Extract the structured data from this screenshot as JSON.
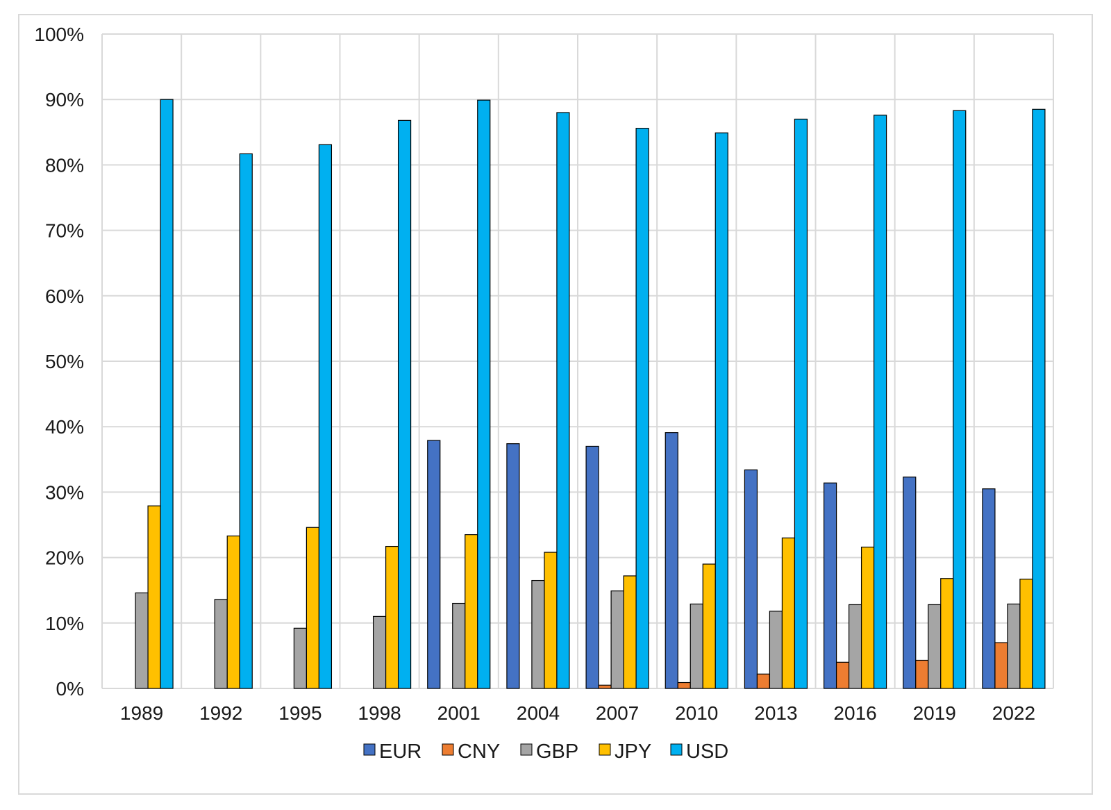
{
  "chart_data": {
    "type": "bar",
    "title": "",
    "xlabel": "",
    "ylabel": "",
    "categories": [
      "1989",
      "1992",
      "1995",
      "1998",
      "2001",
      "2004",
      "2007",
      "2010",
      "2013",
      "2016",
      "2019",
      "2022"
    ],
    "ylim": [
      0,
      100
    ],
    "y_ticks": [
      "0%",
      "10%",
      "20%",
      "30%",
      "40%",
      "50%",
      "60%",
      "70%",
      "80%",
      "90%",
      "100%"
    ],
    "grid": true,
    "legend_position": "bottom",
    "series": [
      {
        "name": "EUR",
        "color": "#4472c4",
        "values": [
          null,
          null,
          null,
          null,
          37.9,
          37.4,
          37.0,
          39.1,
          33.4,
          31.4,
          32.3,
          30.5
        ]
      },
      {
        "name": "CNY",
        "color": "#ed7d31",
        "values": [
          null,
          null,
          null,
          null,
          null,
          null,
          0.5,
          0.9,
          2.2,
          4.0,
          4.3,
          7.0
        ]
      },
      {
        "name": "GBP",
        "color": "#a5a5a5",
        "values": [
          14.6,
          13.6,
          9.2,
          11.0,
          13.0,
          16.5,
          14.9,
          12.9,
          11.8,
          12.8,
          12.8,
          12.9
        ]
      },
      {
        "name": "JPY",
        "color": "#ffc000",
        "values": [
          27.9,
          23.3,
          24.6,
          21.7,
          23.5,
          20.8,
          17.2,
          19.0,
          23.0,
          21.6,
          16.8,
          16.7
        ]
      },
      {
        "name": "USD",
        "color": "#00b0f0",
        "values": [
          90.0,
          81.7,
          83.1,
          86.8,
          89.9,
          88.0,
          85.6,
          84.9,
          87.0,
          87.6,
          88.3,
          88.5
        ]
      }
    ]
  }
}
